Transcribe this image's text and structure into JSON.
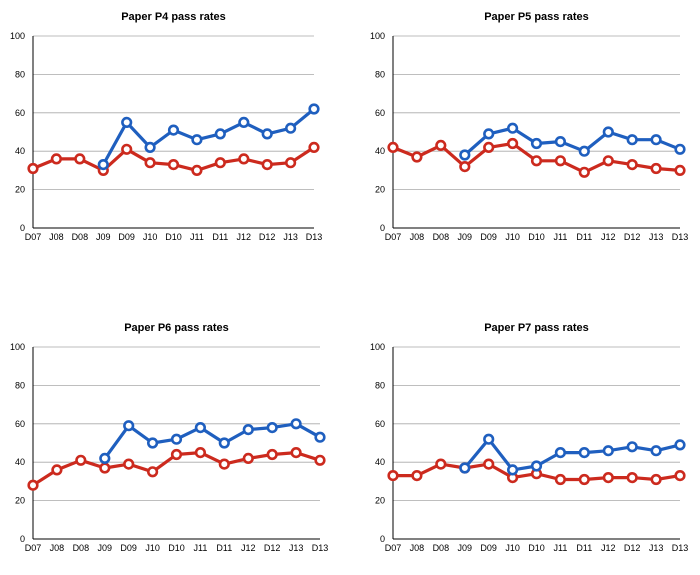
{
  "colors": {
    "blue": "#1f5fbf",
    "red": "#cc2a1e"
  },
  "chart_data": [
    {
      "type": "line",
      "title": "Paper P4 pass rates",
      "categories": [
        "D07",
        "J08",
        "D08",
        "J09",
        "D09",
        "J10",
        "D10",
        "J11",
        "D11",
        "J12",
        "D12",
        "J13",
        "D13"
      ],
      "ylim": [
        0,
        100
      ],
      "yticks": [
        0,
        20,
        40,
        60,
        80,
        100
      ],
      "grid": true,
      "series": [
        {
          "color": "#cc2a1e",
          "values": [
            31,
            36,
            36,
            30,
            41,
            34,
            33,
            30,
            34,
            36,
            33,
            34,
            42
          ]
        },
        {
          "color": "#1f5fbf",
          "values": [
            null,
            null,
            null,
            33,
            55,
            42,
            51,
            46,
            49,
            55,
            49,
            52,
            62
          ]
        }
      ]
    },
    {
      "type": "line",
      "title": "Paper P5 pass rates",
      "categories": [
        "D07",
        "J08",
        "D08",
        "J09",
        "D09",
        "J10",
        "D10",
        "J11",
        "D11",
        "J12",
        "D12",
        "J13",
        "D13"
      ],
      "ylim": [
        0,
        100
      ],
      "yticks": [
        0,
        20,
        40,
        60,
        80,
        100
      ],
      "grid": true,
      "series": [
        {
          "color": "#cc2a1e",
          "values": [
            42,
            37,
            43,
            32,
            42,
            44,
            35,
            35,
            29,
            35,
            33,
            31,
            30
          ]
        },
        {
          "color": "#1f5fbf",
          "values": [
            null,
            null,
            null,
            38,
            49,
            52,
            44,
            45,
            40,
            50,
            46,
            46,
            41
          ]
        }
      ]
    },
    {
      "type": "line",
      "title": "Paper P6 pass rates",
      "categories": [
        "D07",
        "J08",
        "D08",
        "J09",
        "D09",
        "J10",
        "D10",
        "J11",
        "D11",
        "J12",
        "D12",
        "J13",
        "D13"
      ],
      "ylim": [
        0,
        100
      ],
      "yticks": [
        0,
        20,
        40,
        60,
        80,
        100
      ],
      "grid": true,
      "series": [
        {
          "color": "#cc2a1e",
          "values": [
            28,
            36,
            41,
            37,
            39,
            35,
            44,
            45,
            39,
            42,
            44,
            45,
            41
          ]
        },
        {
          "color": "#1f5fbf",
          "values": [
            null,
            null,
            null,
            42,
            59,
            50,
            52,
            58,
            50,
            57,
            58,
            60,
            53
          ]
        }
      ]
    },
    {
      "type": "line",
      "title": "Paper P7 pass rates",
      "categories": [
        "D07",
        "J08",
        "D08",
        "J09",
        "D09",
        "J10",
        "D10",
        "J11",
        "D11",
        "J12",
        "D12",
        "J13",
        "D13"
      ],
      "ylim": [
        0,
        100
      ],
      "yticks": [
        0,
        20,
        40,
        60,
        80,
        100
      ],
      "grid": true,
      "series": [
        {
          "color": "#cc2a1e",
          "values": [
            33,
            33,
            39,
            37,
            39,
            32,
            34,
            31,
            31,
            32,
            32,
            31,
            33
          ]
        },
        {
          "color": "#1f5fbf",
          "values": [
            null,
            null,
            null,
            37,
            52,
            36,
            38,
            45,
            45,
            46,
            48,
            46,
            49
          ]
        }
      ]
    }
  ]
}
